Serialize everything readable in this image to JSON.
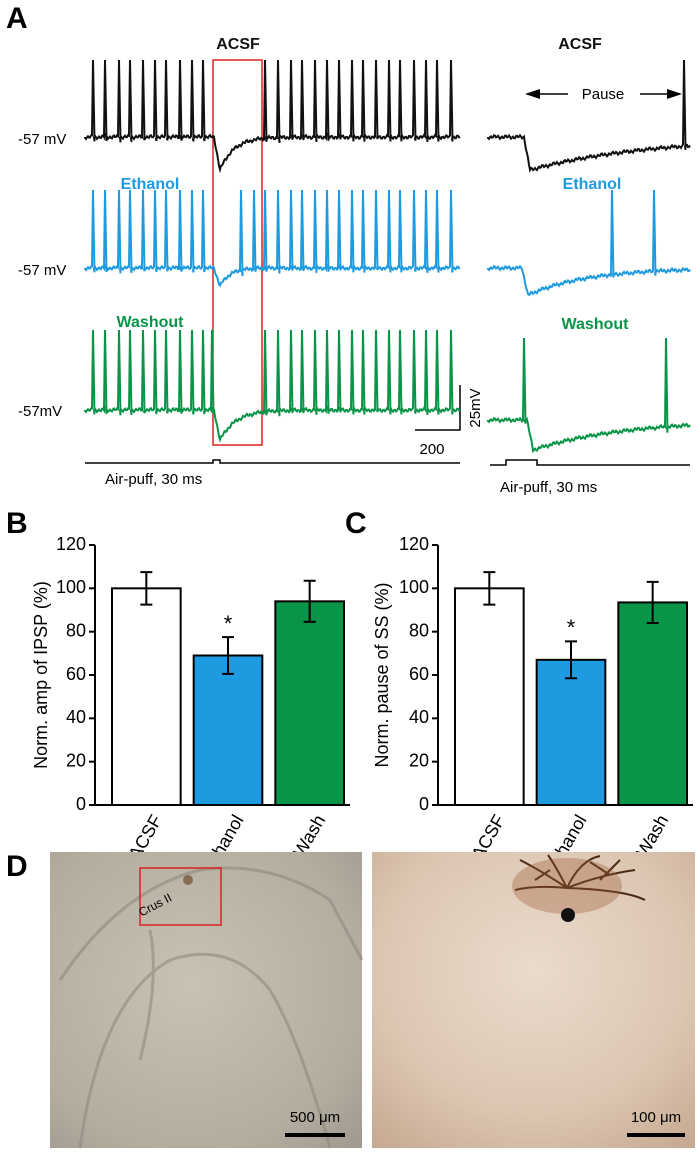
{
  "panel_a": {
    "label": "A",
    "left": {
      "conditions": [
        "ACSF",
        "Ethanol",
        "Washout"
      ],
      "potentials": [
        "-57 mV",
        "-57 mV",
        "-57mV"
      ],
      "time_scale": "200",
      "voltage_scale": "25mV",
      "stimulus": "Air-puff, 30 ms"
    },
    "right": {
      "conditions": [
        "ACSF",
        "Ethanol",
        "Washout"
      ],
      "pause": "Pause",
      "stimulus": "Air-puff, 30 ms"
    }
  },
  "chart_data": [
    {
      "type": "bar",
      "label": "B",
      "ylabel": "Norm. amp of IPSP (%)",
      "categories": [
        "ACSF",
        "Ethanol",
        "Wash"
      ],
      "values": [
        100,
        69,
        94
      ],
      "errors": [
        7.5,
        8.5,
        9.5
      ],
      "markers": [
        null,
        "*",
        null
      ],
      "colors": [
        "#ffffff",
        "#1e9be0",
        "#0a9447"
      ],
      "ylim": [
        0,
        120
      ],
      "yticks": [
        0,
        20,
        40,
        60,
        80,
        100,
        120
      ]
    },
    {
      "type": "bar",
      "label": "C",
      "ylabel": "Norm. pause of SS (%)",
      "categories": [
        "ACSF",
        "Ethanol",
        "Wash"
      ],
      "values": [
        100,
        67,
        93.5
      ],
      "errors": [
        7.5,
        8.5,
        9.5
      ],
      "markers": [
        null,
        "*",
        null
      ],
      "colors": [
        "#ffffff",
        "#1e9be0",
        "#0a9447"
      ],
      "ylim": [
        0,
        120
      ],
      "yticks": [
        0,
        20,
        40,
        60,
        80,
        100,
        120
      ]
    }
  ],
  "panel_d": {
    "label": "D",
    "region": "Crus II",
    "scale_left": "500 μm",
    "scale_right": "100 μm"
  }
}
